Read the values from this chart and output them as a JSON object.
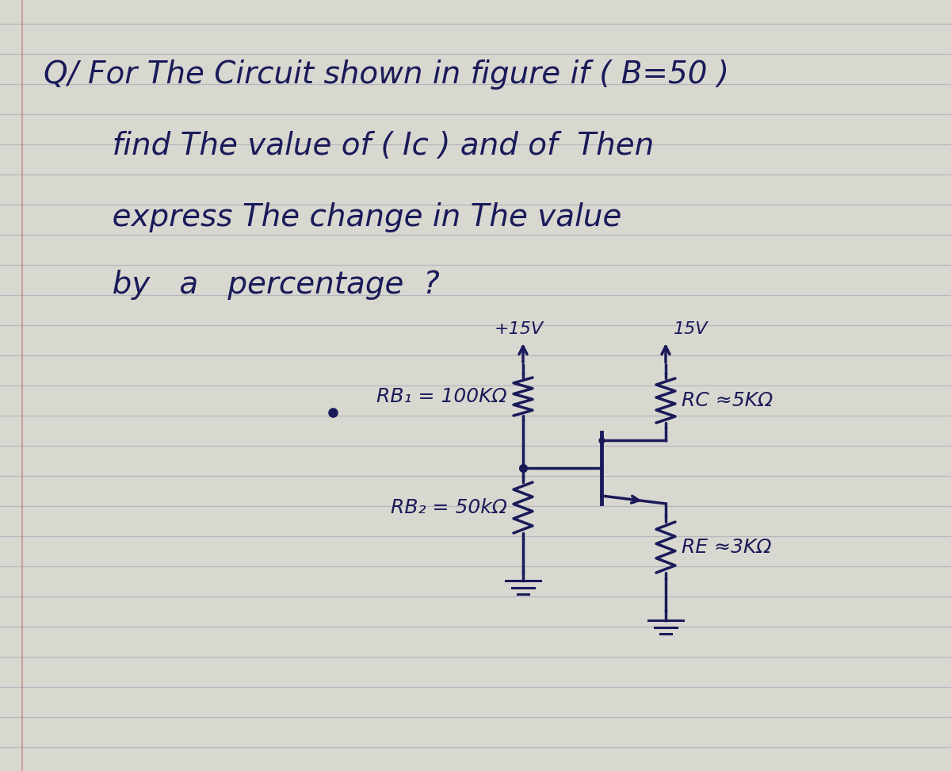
{
  "bg_color": "#d8d8d0",
  "paper_color": "#e8e8e2",
  "line_color": "#1a1a5a",
  "paper_line_color": "#b0b4bc",
  "vcc_left_label": "+15V",
  "vcc_right_label": "15V",
  "rb1_label": "RB₁ = 100KΩ",
  "rc_label": "RC ≈5KΩ",
  "rb2_label": "RB₂ = 50kΩ",
  "re_label": "RE ≈3KΩ",
  "text_line1": "Q/ For The Circuit shown in figure if ( B=50 )",
  "text_line2": "       find The value of ( Iᴄ ) and of  Then",
  "text_line3": "       express The change in The value",
  "text_line4": "       by   a   percentage  ?"
}
